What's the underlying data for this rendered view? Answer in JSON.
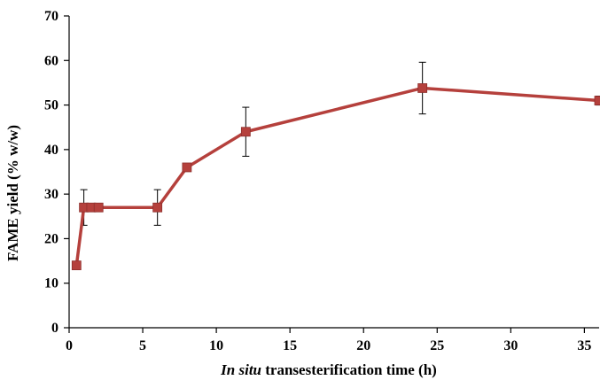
{
  "chart_data": {
    "type": "line",
    "xlabel_italic": "In situ",
    "xlabel_rest": " transesterification time (h)",
    "ylabel": "FAME yield (% w/w)",
    "xlim": [
      0,
      36
    ],
    "ylim": [
      0,
      70
    ],
    "xticks": [
      0,
      5,
      10,
      15,
      20,
      25,
      30,
      35
    ],
    "yticks": [
      0,
      10,
      20,
      30,
      40,
      50,
      60,
      70
    ],
    "grid": false,
    "series": [
      {
        "color": "#b5403c",
        "points": [
          {
            "x": 0.5,
            "y": 14,
            "err": null
          },
          {
            "x": 1,
            "y": 27,
            "err": 4
          },
          {
            "x": 1.5,
            "y": 27,
            "err": null
          },
          {
            "x": 2,
            "y": 27,
            "err": null
          },
          {
            "x": 6,
            "y": 27,
            "err": 4
          },
          {
            "x": 8,
            "y": 36,
            "err": null
          },
          {
            "x": 12,
            "y": 44,
            "err": 5.5
          },
          {
            "x": 24,
            "y": 53.8,
            "err": 5.8
          },
          {
            "x": 36,
            "y": 51,
            "err": 1
          }
        ]
      }
    ]
  }
}
